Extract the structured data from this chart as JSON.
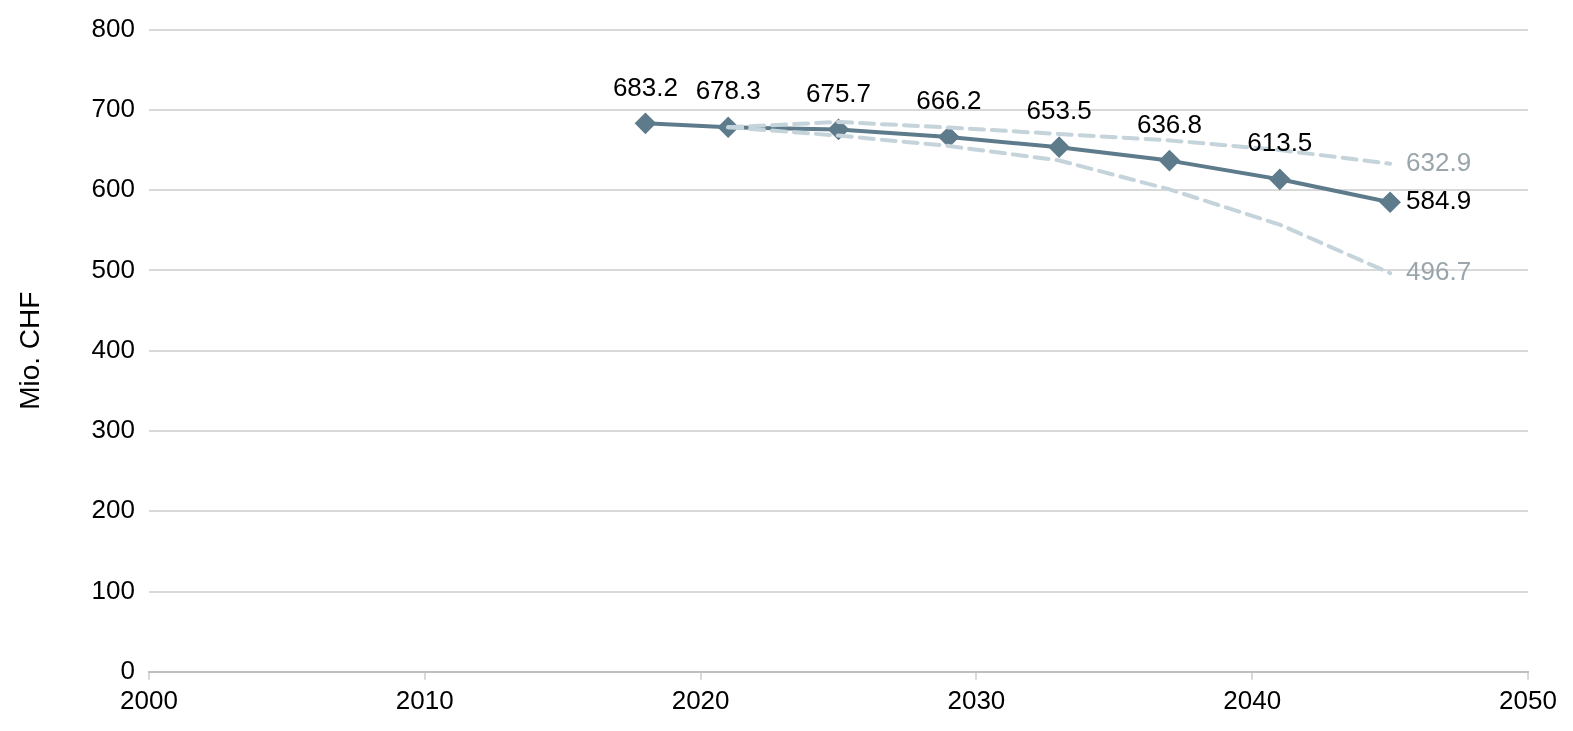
{
  "chart_data": {
    "type": "line",
    "ylabel": "Mio. CHF",
    "x": [
      2018,
      2021,
      2025,
      2029,
      2033,
      2037,
      2041,
      2045
    ],
    "xlim": [
      2000,
      2050
    ],
    "xticks": [
      2000,
      2010,
      2020,
      2030,
      2040,
      2050
    ],
    "ylim": [
      0,
      800
    ],
    "yticks": [
      0,
      100,
      200,
      300,
      400,
      500,
      600,
      700,
      800
    ],
    "grid": "y",
    "legend": false,
    "series": [
      {
        "color": "#c5d3db",
        "line_style": "dashed",
        "marker": "none",
        "x": [
          2021,
          2025,
          2029,
          2033,
          2037,
          2041,
          2045
        ],
        "values": [
          678.3,
          685,
          678,
          670,
          662,
          650,
          632.9
        ],
        "value_labels": [
          null,
          null,
          null,
          null,
          null,
          null,
          "632.9"
        ]
      },
      {
        "color": "#c5d3db",
        "line_style": "dashed",
        "marker": "none",
        "x": [
          2021,
          2025,
          2029,
          2033,
          2037,
          2041,
          2045
        ],
        "values": [
          678.3,
          668,
          655,
          637,
          601,
          557,
          496.7
        ],
        "value_labels": [
          null,
          null,
          null,
          null,
          null,
          null,
          "496.7"
        ]
      },
      {
        "color": "#5e7b8c",
        "line_style": "solid",
        "marker": "diamond",
        "values": [
          683.2,
          678.3,
          675.7,
          666.2,
          653.5,
          636.8,
          613.5,
          584.9
        ],
        "value_labels": [
          "683.2",
          "678.3",
          "675.7",
          "666.2",
          "653.5",
          "636.8",
          "613.5",
          "584.9"
        ]
      }
    ]
  }
}
